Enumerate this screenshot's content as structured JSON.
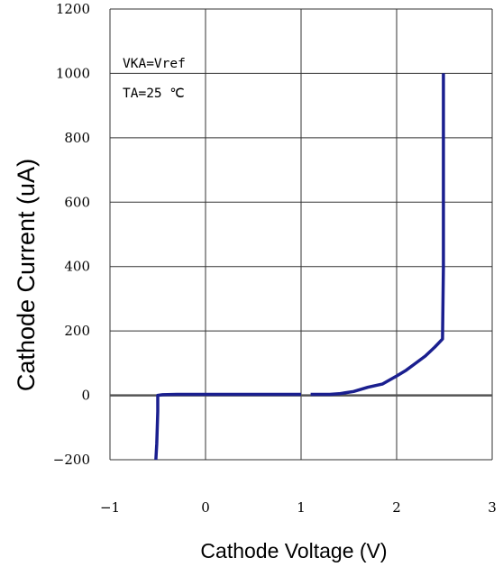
{
  "chart_data": {
    "type": "line",
    "title": "",
    "xlabel": "Cathode Voltage (V)",
    "ylabel": "Cathode Current (uA)",
    "xlim": [
      -1,
      3
    ],
    "ylim": [
      -200,
      1200
    ],
    "x_ticks": [
      -1,
      0,
      1,
      2,
      3
    ],
    "y_ticks": [
      1200,
      1000,
      800,
      600,
      400,
      200,
      0,
      -200
    ],
    "x_tick_labels": [
      "−1",
      "0",
      "1",
      "2",
      "3"
    ],
    "y_tick_labels": [
      "1200",
      "1000",
      "800",
      "600",
      "400",
      "200",
      "0",
      "−200"
    ],
    "grid": true,
    "legend": "none",
    "annotations": [
      "VKA=Vref",
      "TA=25 ℃"
    ],
    "colors": {
      "series": "#1a1f8f",
      "grid": "#333333",
      "zero_line": "#555555"
    },
    "series": [
      {
        "segments": [
          [
            [
              -0.52,
              -200
            ],
            [
              -0.51,
              -150
            ],
            [
              -0.5,
              -50
            ],
            [
              -0.5,
              0
            ],
            [
              -0.45,
              2
            ],
            [
              -0.3,
              3
            ],
            [
              0.0,
              3
            ],
            [
              0.5,
              3
            ],
            [
              1.0,
              3
            ]
          ],
          [
            [
              1.1,
              3
            ],
            [
              1.3,
              3
            ],
            [
              1.4,
              5
            ],
            [
              1.55,
              12
            ],
            [
              1.7,
              25
            ],
            [
              1.85,
              35
            ],
            [
              2.0,
              60
            ],
            [
              2.1,
              78
            ],
            [
              2.2,
              100
            ],
            [
              2.3,
              122
            ],
            [
              2.4,
              150
            ],
            [
              2.48,
              175
            ],
            [
              2.49,
              400
            ],
            [
              2.49,
              800
            ],
            [
              2.49,
              1000
            ]
          ]
        ]
      }
    ]
  }
}
